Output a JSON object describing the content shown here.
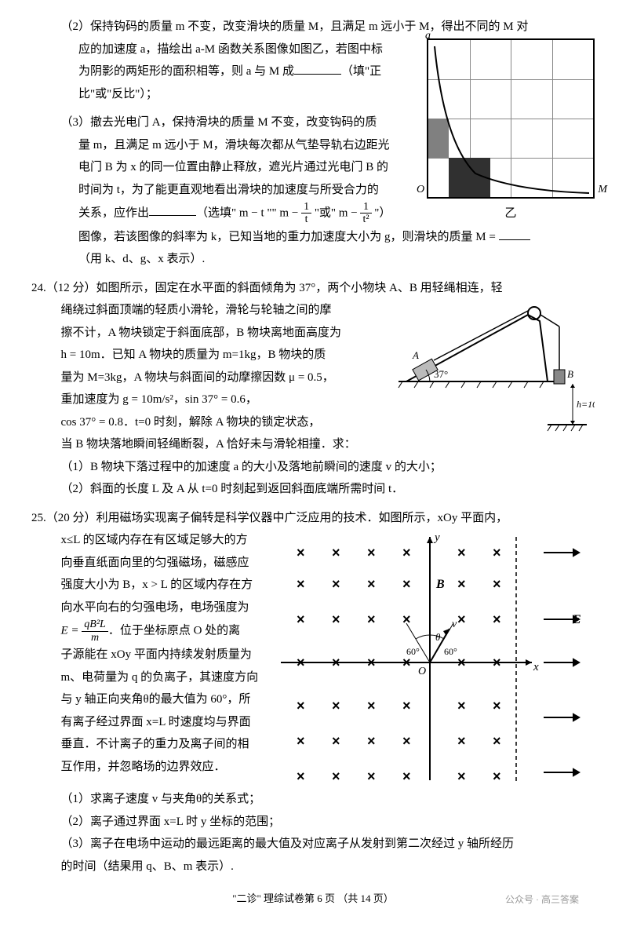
{
  "q2": {
    "line1": "（2）保持钩码的质量 m 不变，改变滑块的质量 M，且满足 m 远小于 M，得出不同的 M 对",
    "line2": "应的加速度 a，描绘出 a-M 函数关系图像如图乙，若图中标",
    "line3": "为阴影的两矩形的面积相等，则 a 与 M 成",
    "line3b": "（填\"正",
    "line4": "比\"或\"反比\"）；",
    "graph_label": "乙",
    "axis_a": "a",
    "axis_m": "M",
    "axis_o": "O"
  },
  "q3": {
    "line1": "（3）撤去光电门 A，保持滑块的质量 M 不变，改变钩码的质",
    "line2": "量 m，且满足 m 远小于 M，滑块每次都从气垫导轨右边距光",
    "line3": "电门 B 为 x 的同一位置由静止释放，遮光片通过光电门 B 的",
    "line4": "时间为 t，为了能更直观地看出滑块的加速度与所受合力的",
    "line5a": "关系，应作出",
    "line5b": "（选填\" m − t \"\" m − ",
    "line5c": " \"或\" m − ",
    "line5d": " \"）",
    "line6a": "图像，若该图像的斜率为 k，已知当地的重力加速度大小为 g，则滑块的质量 M = ",
    "line7": "（用 k、d、g、x 表示）.",
    "frac1n": "1",
    "frac1d": "t",
    "frac2n": "1",
    "frac2d": "t²"
  },
  "q24": {
    "head": "24.（12 分）如图所示，固定在水平面的斜面倾角为 37°，两个小物块 A、B 用轻绳相连，轻",
    "line1": "绳绕过斜面顶端的轻质小滑轮，滑轮与轮轴之间的摩",
    "line2": "擦不计，A 物块锁定于斜面底部，B 物块离地面高度为",
    "line3": "h = 10m．已知 A 物块的质量为 m=1kg，B 物块的质",
    "line4": "量为 M=3kg，A 物块与斜面间的动摩擦因数 μ = 0.5，",
    "line5": "重加速度为 g = 10m/s²，sin 37° = 0.6，",
    "line6": "cos 37° = 0.8．t=0 时刻，解除 A 物块的锁定状态，",
    "line7": "当 B 物块落地瞬间轻绳断裂，A 恰好未与滑轮相撞．求：",
    "sub1": "（1）B 物块下落过程中的加速度 a 的大小及落地前瞬间的速度 v 的大小；",
    "sub2": "（2）斜面的长度 L 及 A 从 t=0 时刻起到返回斜面底端所需时间 t．",
    "angle": "37°",
    "labelA": "A",
    "labelB": "B",
    "labelH": "h=10m"
  },
  "q25": {
    "head": "25.（20 分）利用磁场实现离子偏转是科学仪器中广泛应用的技术．如图所示，xOy 平面内，",
    "line1": "x≤L 的区域内存在有区域足够大的方",
    "line2": "向垂直纸面向里的匀强磁场，磁感应",
    "line3": "强度大小为 B，x > L 的区域内存在方",
    "line4": "向水平向右的匀强电场，电场强度为",
    "line5a": "E = ",
    "line5b": "．位于坐标原点 O 处的离",
    "fracEn": "qB²L",
    "fracEd": "m",
    "line6": "子源能在 xOy 平面内持续发射质量为",
    "line7": "m、电荷量为 q 的负离子，其速度方向",
    "line8": "与 y 轴正向夹角θ的最大值为 60°，所",
    "line9": "有离子经过界面 x=L 时速度均与界面",
    "line10": "垂直．不计离子的重力及离子间的相",
    "line11": "互作用，并忽略场的边界效应．",
    "sub1": "（1）求离子速度 v 与夹角θ的关系式；",
    "sub2": "（2）离子通过界面 x=L 时 y 坐标的范围；",
    "sub3": "（3）离子在电场中运动的最远距离的最大值及对应离子从发射到第二次经过 y 轴所经历",
    "sub3b": "的时间（结果用 q、B、m 表示）.",
    "labels": {
      "y": "y",
      "x": "x",
      "O": "O",
      "B": "B",
      "E": "E",
      "v": "v",
      "theta": "θ",
      "a60": "60°",
      "a60b": "60°"
    }
  },
  "footer": "\"二诊\" 理综试卷第 6 页 （共 14 页）",
  "watermark": "公众号 · 高三答案"
}
